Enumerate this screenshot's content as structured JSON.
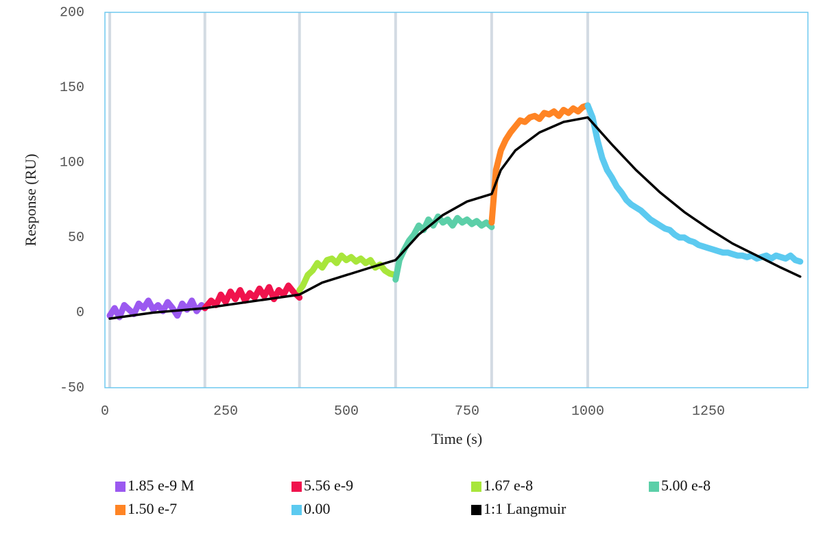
{
  "chart_data": {
    "type": "line",
    "x_label": "Time (s)",
    "y_label": "Response (RU)",
    "xlim": [
      0,
      1456
    ],
    "ylim": [
      -50,
      200
    ],
    "xticks": [
      0,
      250,
      500,
      750,
      1000,
      1250
    ],
    "yticks": [
      -50,
      0,
      50,
      100,
      150,
      200
    ],
    "vlines": [
      10,
      207,
      403,
      602,
      801,
      1000
    ],
    "series": [
      {
        "name": "1.85 e-9 M",
        "color": "#9b59f0",
        "x": [
          10,
          20,
          30,
          40,
          50,
          60,
          70,
          80,
          90,
          100,
          110,
          120,
          130,
          140,
          150,
          160,
          170,
          180,
          190,
          200,
          207
        ],
        "values": [
          -2,
          3,
          -3,
          5,
          2,
          -1,
          6,
          3,
          8,
          2,
          5,
          1,
          7,
          3,
          -2,
          6,
          2,
          8,
          1,
          5,
          3
        ]
      },
      {
        "name": "5.56 e-9",
        "color": "#f0134d",
        "x": [
          207,
          220,
          230,
          240,
          250,
          260,
          270,
          280,
          290,
          300,
          310,
          320,
          330,
          340,
          350,
          360,
          370,
          380,
          390,
          403
        ],
        "values": [
          3,
          8,
          5,
          12,
          7,
          14,
          9,
          15,
          8,
          13,
          10,
          16,
          11,
          17,
          9,
          15,
          12,
          18,
          14,
          10
        ]
      },
      {
        "name": "1.67 e-8",
        "color": "#a8e63b",
        "x": [
          403,
          410,
          420,
          430,
          440,
          450,
          460,
          470,
          480,
          490,
          500,
          510,
          520,
          530,
          540,
          550,
          560,
          570,
          580,
          590,
          602
        ],
        "values": [
          15,
          18,
          25,
          28,
          33,
          30,
          35,
          36,
          33,
          38,
          35,
          37,
          34,
          36,
          33,
          35,
          30,
          32,
          28,
          26,
          25
        ]
      },
      {
        "name": "5.00 e-8",
        "color": "#5ccfa8",
        "x": [
          602,
          610,
          620,
          630,
          640,
          650,
          660,
          670,
          680,
          690,
          700,
          710,
          720,
          730,
          740,
          750,
          760,
          770,
          780,
          790,
          801
        ],
        "values": [
          22,
          35,
          42,
          48,
          52,
          58,
          55,
          62,
          58,
          64,
          60,
          62,
          58,
          63,
          60,
          62,
          59,
          61,
          58,
          60,
          57
        ]
      },
      {
        "name": "1.50 e-7",
        "color": "#ff8424",
        "x": [
          801,
          810,
          820,
          830,
          840,
          850,
          860,
          870,
          880,
          890,
          900,
          910,
          920,
          930,
          940,
          950,
          960,
          970,
          980,
          990,
          1000
        ],
        "values": [
          60,
          95,
          108,
          115,
          120,
          124,
          128,
          127,
          130,
          131,
          129,
          133,
          132,
          134,
          131,
          135,
          133,
          136,
          134,
          137,
          138
        ]
      },
      {
        "name": "0.00",
        "color": "#5ccaf0",
        "x": [
          1000,
          1010,
          1020,
          1030,
          1040,
          1050,
          1060,
          1070,
          1080,
          1090,
          1100,
          1110,
          1120,
          1130,
          1140,
          1150,
          1160,
          1170,
          1180,
          1190,
          1200,
          1210,
          1220,
          1230,
          1240,
          1250,
          1260,
          1270,
          1280,
          1290,
          1300,
          1310,
          1320,
          1330,
          1340,
          1350,
          1360,
          1370,
          1380,
          1390,
          1400,
          1410,
          1420,
          1430,
          1440
        ],
        "values": [
          138,
          130,
          115,
          103,
          95,
          90,
          84,
          80,
          75,
          72,
          70,
          68,
          65,
          62,
          60,
          58,
          56,
          55,
          52,
          50,
          50,
          48,
          47,
          45,
          44,
          43,
          42,
          41,
          40,
          40,
          39,
          38,
          38,
          37,
          38,
          36,
          37,
          38,
          36,
          38,
          37,
          36,
          38,
          35,
          34
        ]
      },
      {
        "name": "1:1 Langmuir",
        "color": "#000000",
        "x": [
          10,
          100,
          207,
          403,
          450,
          500,
          550,
          602,
          650,
          700,
          750,
          801,
          820,
          850,
          900,
          950,
          1000,
          1050,
          1100,
          1150,
          1200,
          1250,
          1300,
          1350,
          1400,
          1440
        ],
        "values": [
          -4,
          0,
          3,
          12,
          20,
          25,
          30,
          35,
          52,
          65,
          74,
          79,
          95,
          108,
          120,
          127,
          130,
          112,
          95,
          80,
          67,
          56,
          46,
          38,
          30,
          24
        ]
      }
    ]
  }
}
